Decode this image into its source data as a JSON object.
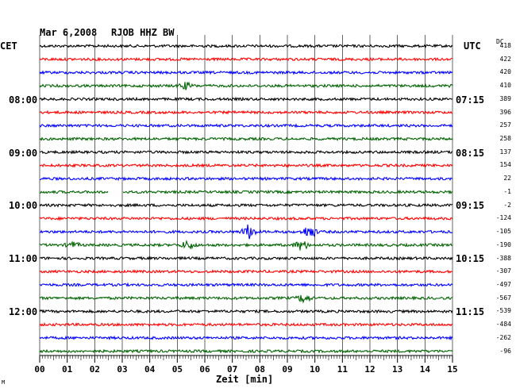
{
  "header": {
    "date": "Mar 6,2008",
    "station": "RJOB HHZ BW"
  },
  "left_axis": {
    "timezone": "CET",
    "hour_labels": [
      "08:00",
      "09:00",
      "10:00",
      "11:00",
      "12:00"
    ]
  },
  "right_axis": {
    "timezone": "UTC",
    "dc_label": "DC",
    "time_labels": [
      "07:15",
      "08:15",
      "09:15",
      "10:15",
      "11:15"
    ],
    "dc_values": [
      "418",
      "422",
      "420",
      "410",
      "389",
      "396",
      "257",
      "258",
      "137",
      "154",
      "22",
      "-1",
      "-2",
      "-124",
      "-105",
      "-190",
      "-388",
      "-307",
      "-497",
      "-567",
      "-539",
      "-484",
      "-262",
      "-96"
    ]
  },
  "x_axis": {
    "label": "Zeit [min]",
    "ticks": [
      "00",
      "01",
      "02",
      "03",
      "04",
      "05",
      "06",
      "07",
      "08",
      "09",
      "10",
      "11",
      "12",
      "13",
      "14",
      "15"
    ],
    "range": [
      0,
      15
    ]
  },
  "corner_mark": "M",
  "colors": {
    "trace_cycle": [
      "#000000",
      "#ff0000",
      "#0000ff",
      "#006400"
    ]
  },
  "traces": {
    "count": 24,
    "events": [
      {
        "trace": 3,
        "minute": 5.3,
        "amp": 4
      },
      {
        "trace": 11,
        "minute": 2.5,
        "gap_to": 3.0
      },
      {
        "trace": 14,
        "minute": 7.6,
        "amp": 9
      },
      {
        "trace": 14,
        "minute": 9.8,
        "amp": 8
      },
      {
        "trace": 15,
        "minute": 5.4,
        "amp": 5
      },
      {
        "trace": 15,
        "minute": 9.5,
        "amp": 6
      },
      {
        "trace": 15,
        "minute": 1.2,
        "amp": 3
      },
      {
        "trace": 19,
        "minute": 9.6,
        "amp": 5
      }
    ]
  }
}
